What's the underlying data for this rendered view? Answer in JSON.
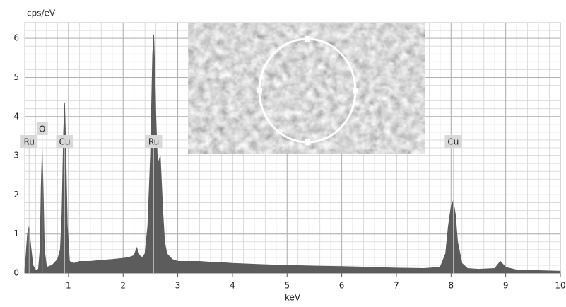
{
  "chart_data": {
    "type": "area",
    "y_label": "cps/eV",
    "x_label": "keV",
    "x": [
      0.2,
      0.22,
      0.25,
      0.28,
      0.31,
      0.35,
      0.4,
      0.45,
      0.48,
      0.5,
      0.52,
      0.54,
      0.56,
      0.6,
      0.7,
      0.8,
      0.85,
      0.88,
      0.91,
      0.93,
      0.95,
      0.98,
      1.02,
      1.1,
      1.2,
      1.4,
      1.6,
      1.8,
      2.0,
      2.1,
      2.2,
      2.25,
      2.3,
      2.35,
      2.4,
      2.45,
      2.5,
      2.54,
      2.56,
      2.58,
      2.6,
      2.63,
      2.66,
      2.68,
      2.7,
      2.73,
      2.76,
      2.8,
      2.9,
      3.0,
      3.2,
      3.4,
      3.6,
      3.8,
      4.0,
      4.5,
      5.0,
      5.5,
      6.0,
      6.5,
      7.0,
      7.5,
      7.8,
      7.9,
      7.95,
      8.0,
      8.04,
      8.08,
      8.12,
      8.2,
      8.3,
      8.5,
      8.8,
      8.9,
      9.0,
      9.2,
      9.5,
      10.0
    ],
    "values": [
      0.1,
      0.4,
      1.0,
      1.2,
      0.7,
      0.2,
      0.08,
      0.1,
      0.6,
      2.2,
      3.15,
      2.0,
      0.6,
      0.15,
      0.2,
      0.35,
      0.6,
      1.5,
      3.6,
      4.35,
      3.3,
      1.2,
      0.3,
      0.25,
      0.3,
      0.3,
      0.33,
      0.35,
      0.38,
      0.4,
      0.45,
      0.65,
      0.45,
      0.4,
      0.5,
      1.2,
      3.0,
      5.6,
      6.1,
      5.2,
      4.0,
      2.8,
      2.9,
      3.0,
      2.4,
      1.5,
      0.8,
      0.5,
      0.35,
      0.3,
      0.3,
      0.3,
      0.28,
      0.27,
      0.25,
      0.22,
      0.2,
      0.18,
      0.17,
      0.15,
      0.13,
      0.12,
      0.15,
      0.5,
      1.2,
      1.7,
      1.85,
      1.5,
      0.8,
      0.25,
      0.12,
      0.1,
      0.12,
      0.3,
      0.15,
      0.08,
      0.07,
      0.05
    ],
    "color": "#5c5c5c",
    "xlim": [
      0.2,
      10
    ],
    "xticks": [
      1,
      2,
      3,
      4,
      5,
      6,
      7,
      8,
      9,
      10
    ],
    "ylim": [
      0,
      6.4
    ],
    "yticks": [
      0,
      1,
      2,
      3,
      4,
      5,
      6
    ],
    "grid": true,
    "minor_grid_divisions": 5,
    "annotations": [
      {
        "text": "Ru",
        "x": 0.28
      },
      {
        "text": "O",
        "x": 0.52
      },
      {
        "text": "Cu",
        "x": 0.93
      },
      {
        "text": "Ru",
        "x": 2.56
      },
      {
        "text": "Cu",
        "x": 8.04
      }
    ]
  }
}
